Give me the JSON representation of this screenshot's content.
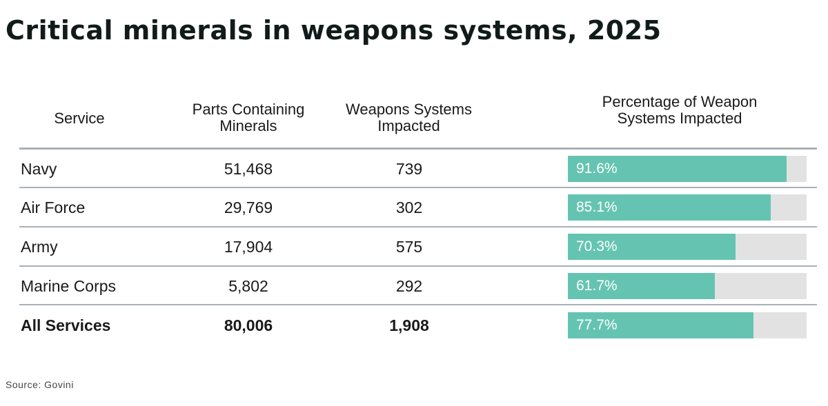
{
  "title": "Critical minerals in weapons systems, 2025",
  "headers": {
    "service": "Service",
    "parts": "Parts Containing Minerals",
    "weapons": "Weapons Systems Impacted",
    "pct": "Percentage of Weapon Systems Impacted"
  },
  "rows": [
    {
      "service": "Navy",
      "parts": "51,468",
      "weapons": "739",
      "pct_label": "91.6%"
    },
    {
      "service": "Air Force",
      "parts": "29,769",
      "weapons": "302",
      "pct_label": "85.1%"
    },
    {
      "service": "Army",
      "parts": "17,904",
      "weapons": "575",
      "pct_label": "70.3%"
    },
    {
      "service": "Marine Corps",
      "parts": "5,802",
      "weapons": "292",
      "pct_label": "61.7%"
    },
    {
      "service": "All Services",
      "parts": "80,006",
      "weapons": "1,908",
      "pct_label": "77.7%"
    }
  ],
  "source": "Source: Govini",
  "colors": {
    "bar": "#65c4b1",
    "track": "#e2e2e2",
    "title": "#111b1a"
  },
  "chart_data": {
    "type": "table",
    "title": "Critical minerals in weapons systems, 2025",
    "columns": [
      "Service",
      "Parts Containing Minerals",
      "Weapons Systems Impacted",
      "Percentage of Weapon Systems Impacted"
    ],
    "categories": [
      "Navy",
      "Air Force",
      "Army",
      "Marine Corps",
      "All Services"
    ],
    "series": [
      {
        "name": "Parts Containing Minerals",
        "values": [
          51468,
          29769,
          17904,
          5802,
          80006
        ]
      },
      {
        "name": "Weapons Systems Impacted",
        "values": [
          739,
          302,
          575,
          292,
          1908
        ]
      },
      {
        "name": "Percentage of Weapon Systems Impacted",
        "values": [
          91.6,
          85.1,
          70.3,
          61.7,
          77.7
        ]
      }
    ],
    "ylim": [
      0,
      100
    ]
  }
}
